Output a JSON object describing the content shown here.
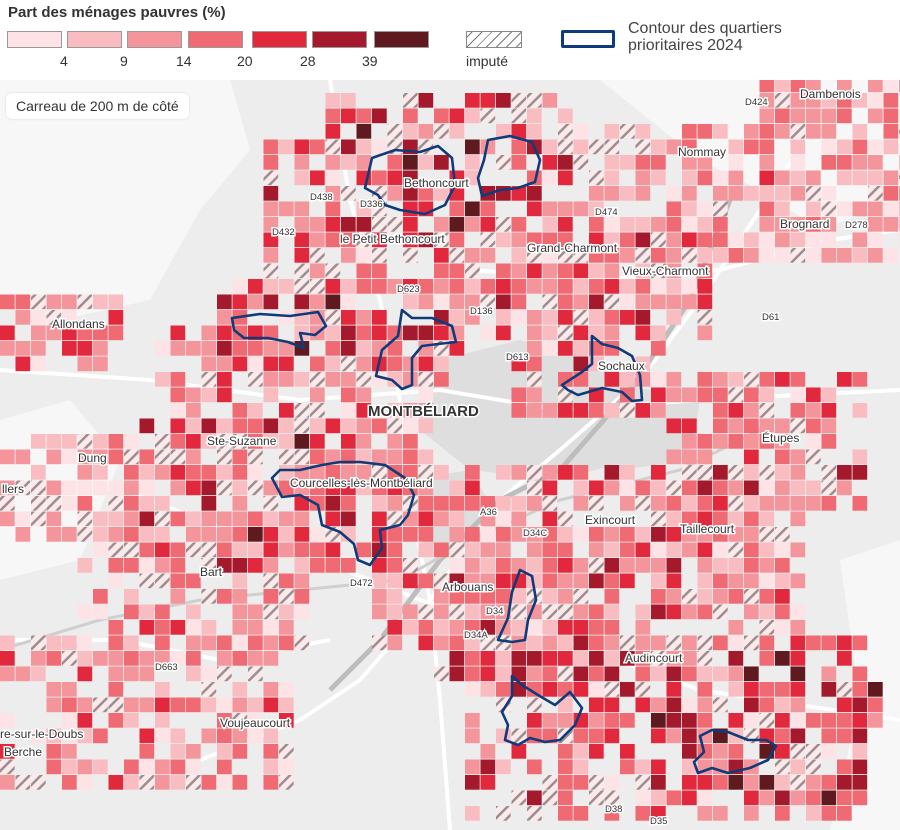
{
  "legend": {
    "title": "Part des ménages pauvres (%)",
    "colors": [
      "#fde3e6",
      "#f9bcc1",
      "#f4959c",
      "#ef6a73",
      "#e2283c",
      "#a5192c",
      "#5e1a1e"
    ],
    "ticks": [
      "4",
      "9",
      "14",
      "20",
      "28",
      "39"
    ],
    "imputed_label": "imputé",
    "contour_label_line1": "Contour des quartiers",
    "contour_label_line2": "prioritaires 2024",
    "contour_color": "#0f3b7a"
  },
  "map": {
    "scale_note": "Carreau de 200 m de côté",
    "places": [
      {
        "name": "Dambenois",
        "big": false
      },
      {
        "name": "Nommay",
        "big": false
      },
      {
        "name": "Bethoncourt",
        "big": false
      },
      {
        "name": "D438",
        "big": false
      },
      {
        "name": "D336",
        "big": false
      },
      {
        "name": "D432",
        "big": false
      },
      {
        "name": "le Petit Bethoncourt",
        "big": false
      },
      {
        "name": "D474",
        "big": false
      },
      {
        "name": "Brognard",
        "big": false
      },
      {
        "name": "D278",
        "big": false
      },
      {
        "name": "D424",
        "big": false
      },
      {
        "name": "Grand-Charmont",
        "big": false
      },
      {
        "name": "Vieux-Charmont",
        "big": false
      },
      {
        "name": "D623",
        "big": false
      },
      {
        "name": "D136",
        "big": false
      },
      {
        "name": "D61",
        "big": false
      },
      {
        "name": "Allondans",
        "big": false
      },
      {
        "name": "D613",
        "big": false
      },
      {
        "name": "Sochaux",
        "big": false
      },
      {
        "name": "MONTBÉLIARD",
        "big": true
      },
      {
        "name": "Ste-Suzanne",
        "big": false
      },
      {
        "name": "Étupes",
        "big": false
      },
      {
        "name": "Dung",
        "big": false
      },
      {
        "name": "llers",
        "big": false
      },
      {
        "name": "Courcelles-lès-Montbéliard",
        "big": false
      },
      {
        "name": "A36",
        "big": false
      },
      {
        "name": "D34C",
        "big": false
      },
      {
        "name": "Exincourt",
        "big": false
      },
      {
        "name": "Taillecourt",
        "big": false
      },
      {
        "name": "Bart",
        "big": false
      },
      {
        "name": "D472",
        "big": false
      },
      {
        "name": "Arbouans",
        "big": false
      },
      {
        "name": "D34",
        "big": false
      },
      {
        "name": "D34A",
        "big": false
      },
      {
        "name": "Audincourt",
        "big": false
      },
      {
        "name": "D663",
        "big": false
      },
      {
        "name": "Voujeaucourt",
        "big": false
      },
      {
        "name": "re-sur-le-Doubs",
        "big": false
      },
      {
        "name": "Berche",
        "big": false
      },
      {
        "name": "D38",
        "big": false
      },
      {
        "name": "D35",
        "big": false
      }
    ]
  }
}
